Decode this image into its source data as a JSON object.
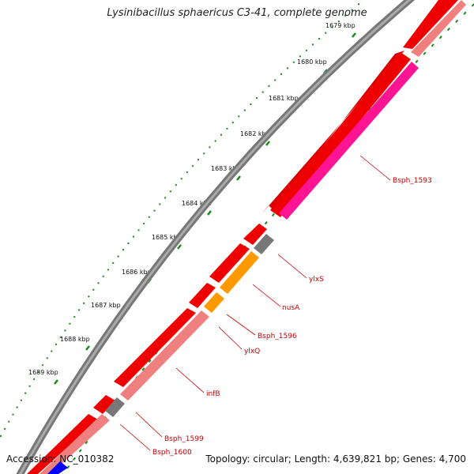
{
  "header": {
    "title": "Lysinibacillus sphaericus C3-41, complete genome"
  },
  "footer": {
    "accession": "Accession: NC_010382",
    "topology": "Topology: circular; Length: 4,639,821 bp; Genes: 4,700"
  },
  "colors": {
    "backbone": "#888888",
    "forward_cds": "#ee0000",
    "reverse_cds": "#f08080",
    "magenta": "#ff1493",
    "orange": "#ff9900",
    "grey": "#777777",
    "blue": "#0000ff",
    "tick": "#1a8a1a",
    "label": "#cc0000"
  },
  "ticks": [
    {
      "label": "1679 kbp"
    },
    {
      "label": "1680 kbp"
    },
    {
      "label": "1681 kbp"
    },
    {
      "label": "1682 kbp"
    },
    {
      "label": "1683 kbp"
    },
    {
      "label": "1684 kbp"
    },
    {
      "label": "1685 kbp"
    },
    {
      "label": "1686 kbp"
    },
    {
      "label": "1687 kbp"
    },
    {
      "label": "1688 kbp"
    },
    {
      "label": "1689 kbp"
    }
  ],
  "gene_labels": [
    {
      "name": "Bsph_1593"
    },
    {
      "name": "ylxS"
    },
    {
      "name": "nusA"
    },
    {
      "name": "Bsph_1596"
    },
    {
      "name": "ylxQ"
    },
    {
      "name": "infB"
    },
    {
      "name": "Bsph_1599"
    },
    {
      "name": "Bsph_1600"
    }
  ]
}
